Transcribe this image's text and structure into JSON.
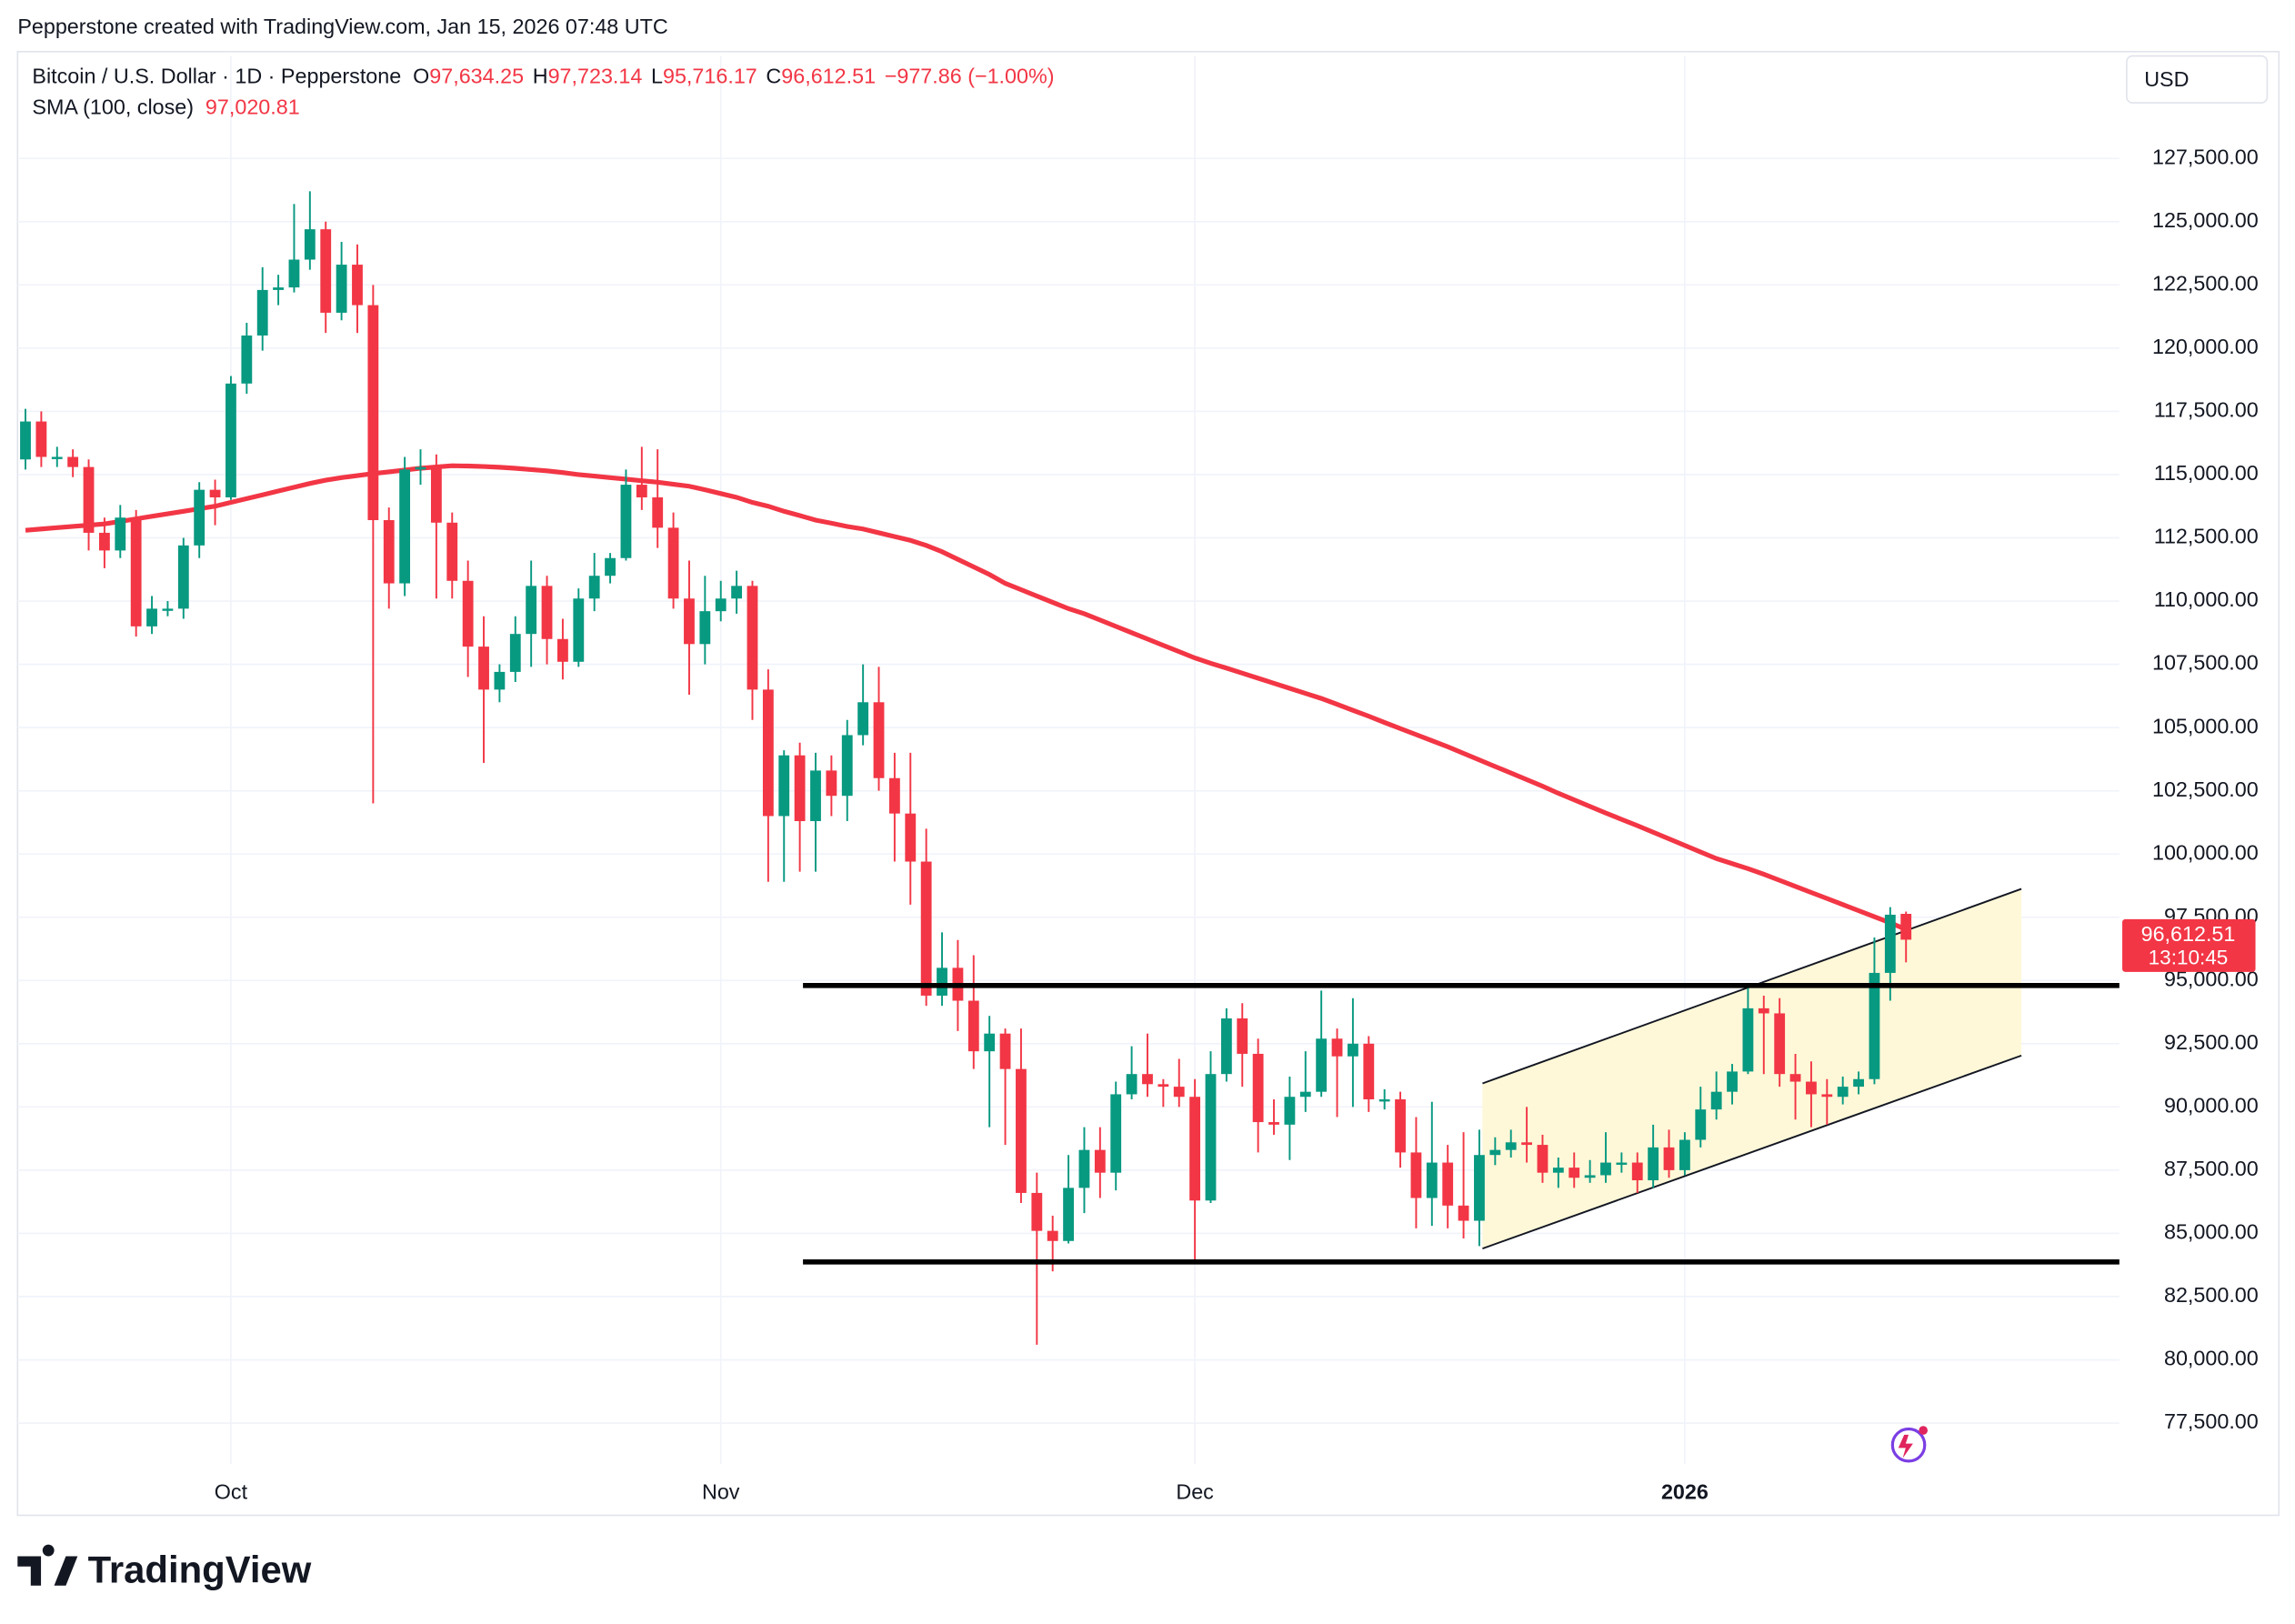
{
  "attribution": "Pepperstone created with TradingView.com, Jan 15, 2026 07:48 UTC",
  "footer_logo": "TradingView",
  "chart_data": {
    "type": "candlestick",
    "currency": "USD",
    "ohlc_labels": [
      {
        "key": "O",
        "value": "97,634.25"
      },
      {
        "key": "H",
        "value": "97,723.14"
      },
      {
        "key": "L",
        "value": "95,716.17"
      },
      {
        "key": "C",
        "value": "96,612.51"
      }
    ],
    "change_label": "−977.86 (−1.00%)",
    "last_price_label": "96,612.51",
    "countdown": "13:10:45",
    "series": [
      {
        "name": "Bitcoin / U.S. Dollar · 1D · Pepperstone",
        "type": "candlestick",
        "up_color": "#089981",
        "down_color": "#f23645",
        "open": [
          115600,
          117100,
          115700,
          115700,
          115300,
          112700,
          112000,
          113300,
          109000,
          109700,
          109700,
          112200,
          114400,
          114100,
          118600,
          120500,
          122300,
          122400,
          123500,
          124700,
          121400,
          123300,
          121700,
          113200,
          110700,
          115200,
          115300,
          113100,
          110800,
          108200,
          106500,
          107200,
          108700,
          110600,
          108500,
          107600,
          110100,
          111000,
          111700,
          114600,
          114100,
          112900,
          110100,
          108300,
          109600,
          110100,
          110600,
          106500,
          101500,
          103900,
          101300,
          103300,
          102300,
          104700,
          106000,
          103000,
          101600,
          99700,
          94400,
          95500,
          94200,
          92200,
          92900,
          91500,
          86600,
          85100,
          84700,
          86800,
          88300,
          87400,
          90500,
          91300,
          90900,
          90800,
          90400,
          86300,
          91300,
          93500,
          92100,
          89400,
          89300,
          90400,
          90600,
          92700,
          92000,
          92500,
          90300,
          90300,
          88200,
          86400,
          87800,
          86100,
          85500,
          88100,
          88300,
          88600,
          88500,
          87400,
          87600,
          87200,
          87300,
          87800,
          87800,
          87100,
          88400,
          87500,
          88700,
          89900,
          90600,
          91400,
          93900,
          93700,
          91300,
          91000,
          90500,
          90400,
          90800,
          91100,
          95300,
          97634.25
        ],
        "high": [
          117600,
          117500,
          116100,
          116000,
          115600,
          113300,
          113800,
          113600,
          110200,
          110000,
          112500,
          114700,
          114800,
          118900,
          121000,
          123200,
          122900,
          125700,
          126200,
          125000,
          124200,
          124100,
          122500,
          113700,
          115700,
          116000,
          115800,
          113500,
          111600,
          109400,
          107500,
          109400,
          111600,
          111000,
          109300,
          110500,
          111900,
          111900,
          115200,
          116100,
          116000,
          113500,
          111600,
          111000,
          110800,
          111200,
          110800,
          107300,
          104100,
          104400,
          104000,
          103900,
          105300,
          107500,
          107400,
          104000,
          104000,
          101000,
          96900,
          96600,
          96000,
          93600,
          93100,
          93100,
          87400,
          85700,
          88100,
          89200,
          89200,
          91000,
          92400,
          92900,
          91100,
          91900,
          91100,
          92200,
          93900,
          94100,
          92700,
          90300,
          91200,
          92200,
          94600,
          93100,
          94300,
          92800,
          90700,
          90600,
          89600,
          90200,
          88500,
          89000,
          89100,
          88800,
          89100,
          90000,
          88900,
          88000,
          88200,
          87900,
          89000,
          88200,
          88200,
          89300,
          89100,
          89000,
          90800,
          91400,
          91700,
          94800,
          94400,
          94300,
          92100,
          91800,
          91100,
          91200,
          91400,
          96700,
          97900,
          97723.14
        ],
        "low": [
          115200,
          115300,
          115300,
          114900,
          112000,
          111300,
          111700,
          108600,
          108700,
          109400,
          109300,
          111700,
          113000,
          114000,
          118200,
          119900,
          121700,
          122200,
          123100,
          120600,
          121100,
          120600,
          102000,
          109700,
          110200,
          114600,
          110100,
          110100,
          107000,
          103600,
          106000,
          106800,
          107400,
          107500,
          106900,
          107400,
          109600,
          110700,
          111600,
          113600,
          112100,
          109700,
          106300,
          107500,
          109200,
          109500,
          105300,
          98900,
          98900,
          99300,
          99300,
          101500,
          101300,
          104300,
          102500,
          99700,
          98000,
          94000,
          94000,
          93000,
          91500,
          89200,
          88500,
          86200,
          80600,
          83500,
          84600,
          85800,
          86400,
          86700,
          90300,
          90400,
          90000,
          90000,
          83800,
          86200,
          91000,
          90800,
          88200,
          88900,
          87900,
          89800,
          90400,
          89600,
          90000,
          89800,
          89900,
          87600,
          85200,
          85300,
          85200,
          84800,
          84500,
          87700,
          88000,
          87800,
          87000,
          86800,
          86800,
          87000,
          87000,
          87400,
          86600,
          86800,
          87200,
          87300,
          88400,
          89500,
          90100,
          91300,
          91300,
          90800,
          89500,
          89200,
          89300,
          90100,
          90500,
          90900,
          94200,
          95716.17
        ],
        "close": [
          117100,
          115700,
          115700,
          115300,
          112700,
          112000,
          113300,
          109000,
          109700,
          109700,
          112200,
          114400,
          114100,
          118600,
          120500,
          122300,
          122400,
          123500,
          124700,
          121400,
          123300,
          121700,
          113200,
          110700,
          115200,
          115300,
          113100,
          110800,
          108200,
          106500,
          107200,
          108700,
          110600,
          108500,
          107600,
          110100,
          111000,
          111700,
          114600,
          114100,
          112900,
          110100,
          108300,
          109600,
          110100,
          110600,
          106500,
          101500,
          103900,
          101300,
          103300,
          102300,
          104700,
          106000,
          103000,
          101600,
          99700,
          94400,
          95500,
          94200,
          92200,
          92900,
          91500,
          86600,
          85100,
          84700,
          86800,
          88300,
          87400,
          90500,
          91300,
          90900,
          90800,
          90400,
          86300,
          91300,
          93500,
          92100,
          89400,
          89300,
          90400,
          90600,
          92700,
          92000,
          92500,
          90300,
          90300,
          88200,
          86400,
          87800,
          86100,
          85500,
          88100,
          88300,
          88600,
          88500,
          87400,
          87600,
          87200,
          87300,
          87800,
          87800,
          87100,
          88400,
          87500,
          88700,
          89900,
          90600,
          91400,
          93900,
          93700,
          91300,
          91000,
          90500,
          90400,
          90800,
          91100,
          95300,
          97600,
          96612.51
        ]
      },
      {
        "name": "SMA (100, close)",
        "type": "line",
        "color": "#f23645",
        "value_label": "97,020.81",
        "values": [
          112800,
          112850,
          112900,
          112950,
          113000,
          113050,
          113150,
          113250,
          113350,
          113450,
          113550,
          113650,
          113750,
          113900,
          114050,
          114200,
          114350,
          114500,
          114650,
          114780,
          114880,
          114960,
          115040,
          115110,
          115180,
          115250,
          115300,
          115350,
          115340,
          115320,
          115290,
          115250,
          115200,
          115150,
          115080,
          115000,
          114940,
          114880,
          114820,
          114760,
          114700,
          114620,
          114540,
          114400,
          114250,
          114100,
          113900,
          113750,
          113550,
          113380,
          113200,
          113080,
          112950,
          112850,
          112700,
          112550,
          112400,
          112200,
          111950,
          111650,
          111350,
          111050,
          110700,
          110450,
          110200,
          109950,
          109700,
          109500,
          109250,
          109000,
          108750,
          108500,
          108250,
          108000,
          107750,
          107540,
          107350,
          107150,
          106950,
          106750,
          106550,
          106350,
          106150,
          105920,
          105680,
          105450,
          105200,
          104960,
          104720,
          104480,
          104240,
          103980,
          103720,
          103460,
          103200,
          102940,
          102680,
          102400,
          102140,
          101880,
          101620,
          101370,
          101120,
          100860,
          100600,
          100340,
          100080,
          99820,
          99620,
          99420,
          99200,
          98960,
          98720,
          98480,
          98240,
          98000,
          97760,
          97520,
          97280,
          97020.81
        ]
      }
    ],
    "horizontal_lines": [
      {
        "price": 94800,
        "from": 49.2
      },
      {
        "price": 83870,
        "from": 49.2
      }
    ],
    "channel": {
      "start": 92.2,
      "end": 126.3,
      "lower": [
        84400,
        92030
      ],
      "upper": [
        90930,
        98620
      ],
      "fill": "#fff8d8"
    },
    "xlim": [
      -0.5,
      132.5
    ],
    "xticks": [
      {
        "value": 13,
        "label": "Oct"
      },
      {
        "value": 44,
        "label": "Nov"
      },
      {
        "value": 74,
        "label": "Dec"
      },
      {
        "value": 105,
        "label": "2026"
      }
    ],
    "ylim": [
      75880,
      131550
    ],
    "yticks": [
      {
        "value": 77500,
        "label": "77,500.00"
      },
      {
        "value": 80000,
        "label": "80,000.00"
      },
      {
        "value": 82500,
        "label": "82,500.00"
      },
      {
        "value": 85000,
        "label": "85,000.00"
      },
      {
        "value": 87500,
        "label": "87,500.00"
      },
      {
        "value": 90000,
        "label": "90,000.00"
      },
      {
        "value": 92500,
        "label": "92,500.00"
      },
      {
        "value": 95000,
        "label": "95,000.00"
      },
      {
        "value": 97500,
        "label": "97,500.00"
      },
      {
        "value": 100000,
        "label": "100,000.00"
      },
      {
        "value": 102500,
        "label": "102,500.00"
      },
      {
        "value": 105000,
        "label": "105,000.00"
      },
      {
        "value": 107500,
        "label": "107,500.00"
      },
      {
        "value": 110000,
        "label": "110,000.00"
      },
      {
        "value": 112500,
        "label": "112,500.00"
      },
      {
        "value": 115000,
        "label": "115,000.00"
      },
      {
        "value": 117500,
        "label": "117,500.00"
      },
      {
        "value": 120000,
        "label": "120,000.00"
      },
      {
        "value": 122500,
        "label": "122,500.00"
      },
      {
        "value": 125000,
        "label": "125,000.00"
      },
      {
        "value": 127500,
        "label": "127,500.00"
      }
    ],
    "grid": true
  }
}
